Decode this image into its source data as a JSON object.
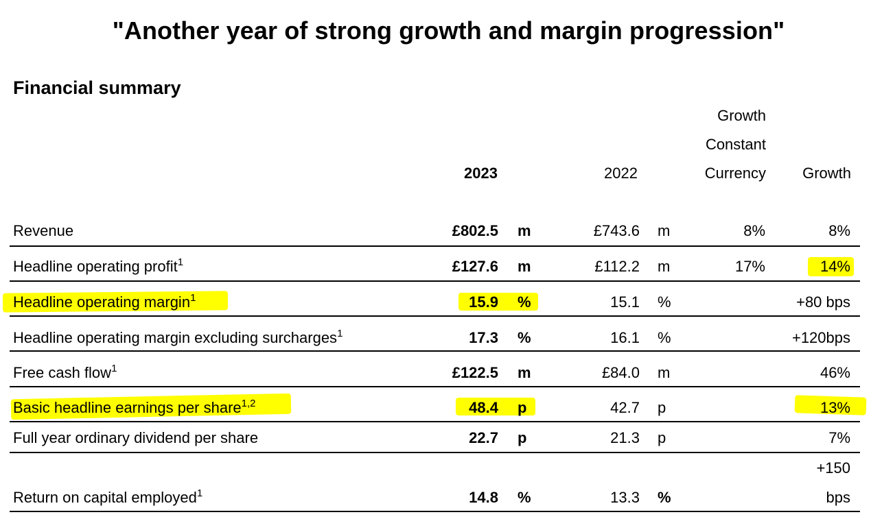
{
  "headline": "\"Another year of strong growth and margin progression\"",
  "section_title": "Financial summary",
  "columns": {
    "y2023": "2023",
    "y2022": "2022",
    "growth_cc_line1": "Growth",
    "growth_cc_line2": "Constant",
    "growth_cc_line3": "Currency",
    "growth": "Growth"
  },
  "rows": [
    {
      "label": "Revenue",
      "sup": "",
      "v2023": "£802.5",
      "u2023": "m",
      "v2022": "£743.6",
      "u2022": "m",
      "growth_cc": "8%",
      "growth": "8%"
    },
    {
      "label": "Headline operating profit",
      "sup": "1",
      "v2023": "£127.6",
      "u2023": "m",
      "v2022": "£112.2",
      "u2022": "m",
      "growth_cc": "17%",
      "growth": "14%"
    },
    {
      "label": "Headline operating margin",
      "sup": "1",
      "v2023": "15.9",
      "u2023": "%",
      "v2022": "15.1",
      "u2022": "%",
      "growth_cc": "",
      "growth": "+80 bps"
    },
    {
      "label": "Headline operating margin excluding surcharges",
      "sup": "1",
      "v2023": "17.3",
      "u2023": "%",
      "v2022": "16.1",
      "u2022": "%",
      "growth_cc": "",
      "growth": "+120bps"
    },
    {
      "label": "Free cash flow",
      "sup": "1",
      "v2023": "£122.5",
      "u2023": "m",
      "v2022": "£84.0",
      "u2022": "m",
      "growth_cc": "",
      "growth": "46%"
    },
    {
      "label": "Basic headline earnings per share",
      "sup": "1,2",
      "v2023": "48.4",
      "u2023": "p",
      "v2022": "42.7",
      "u2022": "p",
      "growth_cc": "",
      "growth": "13%"
    },
    {
      "label": "Full year ordinary dividend per share",
      "sup": "",
      "v2023": "22.7",
      "u2023": "p",
      "v2022": "21.3",
      "u2022": "p",
      "growth_cc": "",
      "growth": "7%"
    },
    {
      "label": "Return on capital employed",
      "sup": "1",
      "v2023": "14.8",
      "u2023": "%",
      "v2022": "13.3",
      "u2022": "%",
      "growth_cc": "",
      "growth_line1": "+150",
      "growth_line2": "bps"
    }
  ],
  "highlight_color": "#ffff00"
}
